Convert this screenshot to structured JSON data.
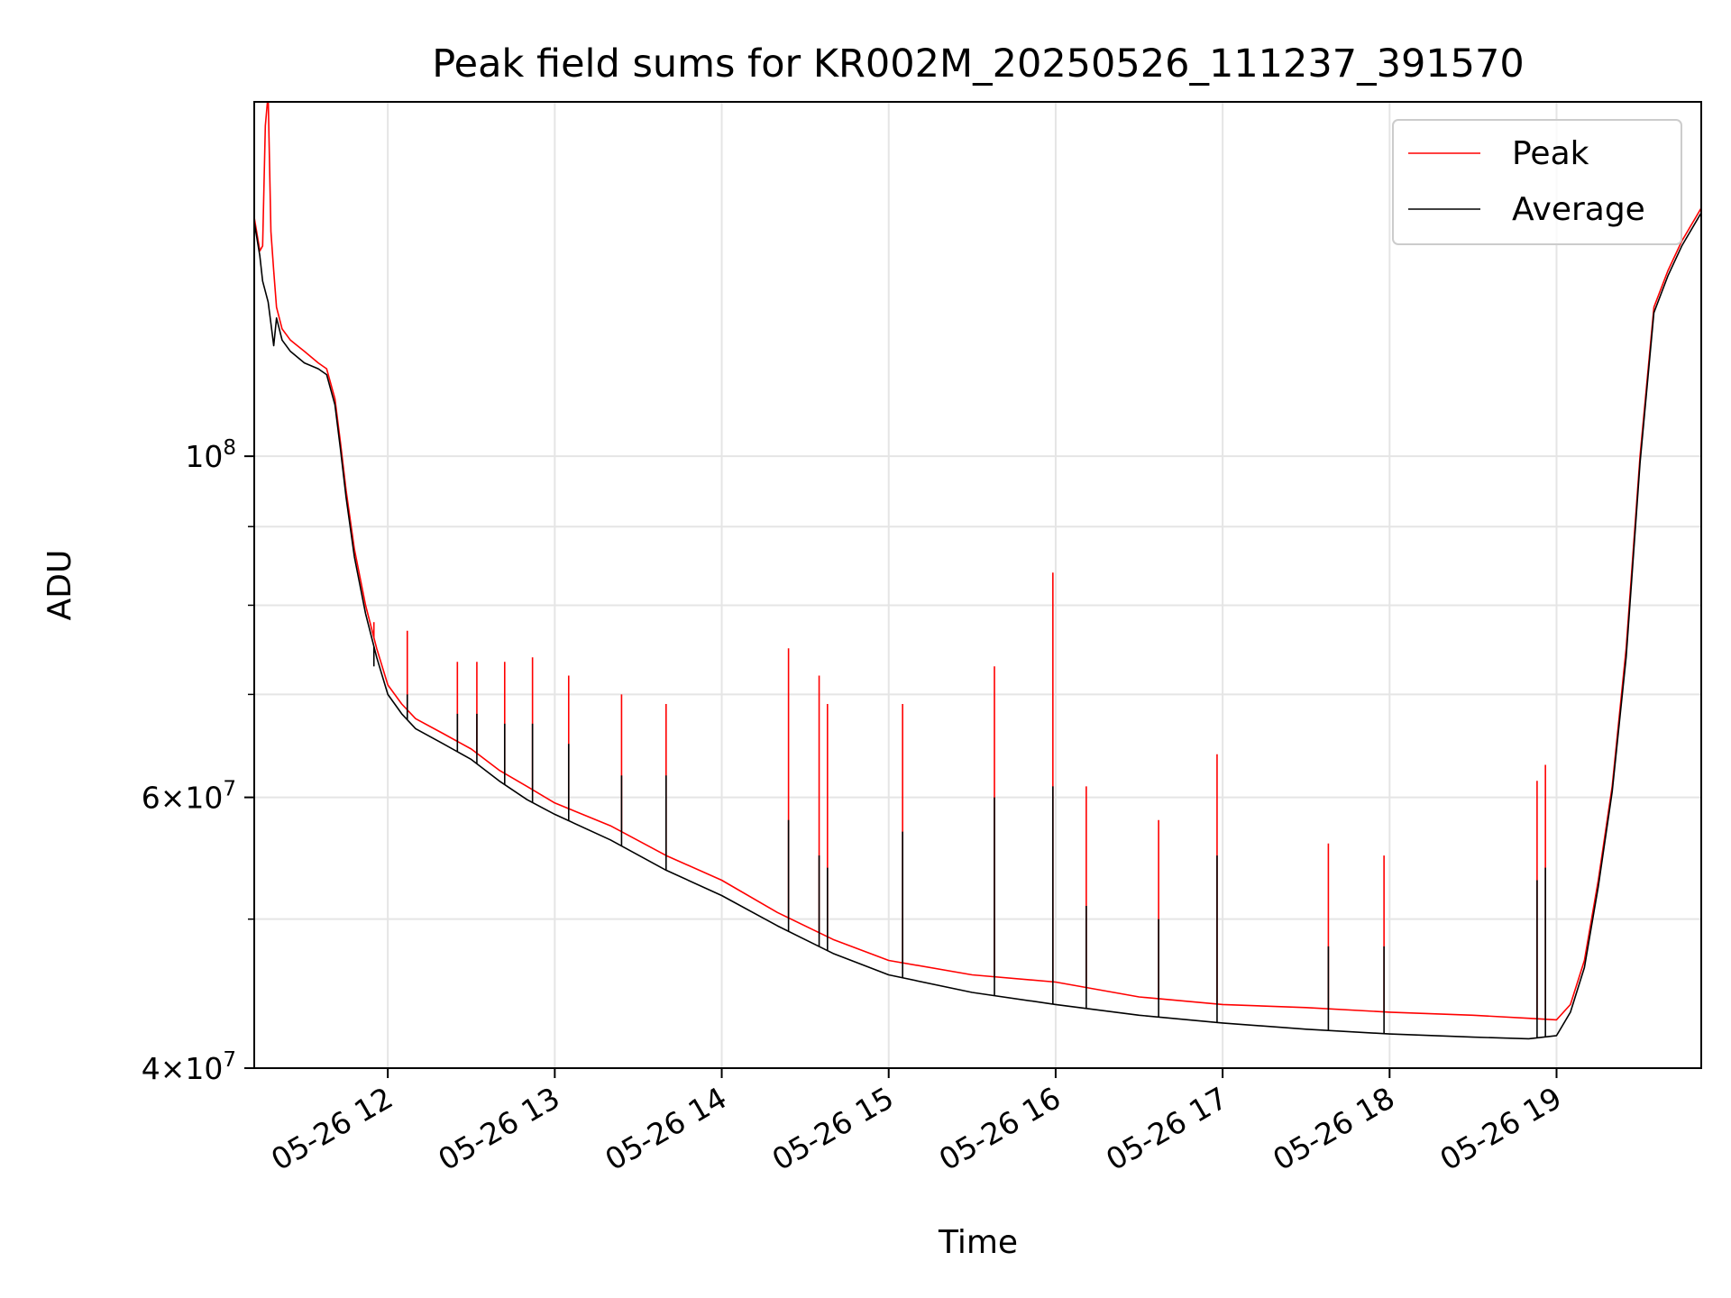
{
  "chart_data": {
    "type": "line",
    "title": "Peak field sums for KR002M_20250526_111237_391570",
    "xlabel": "Time",
    "ylabel": "ADU",
    "yscale": "log",
    "xlim": [
      "2025-05-26T11:12",
      "2025-05-26T19:52"
    ],
    "ylim": [
      40000000,
      170000000
    ],
    "grid": true,
    "legend_position": "top-right",
    "x_ticks": [
      {
        "value": "2025-05-26T12:00",
        "label": "05-26 12"
      },
      {
        "value": "2025-05-26T13:00",
        "label": "05-26 13"
      },
      {
        "value": "2025-05-26T14:00",
        "label": "05-26 14"
      },
      {
        "value": "2025-05-26T15:00",
        "label": "05-26 15"
      },
      {
        "value": "2025-05-26T16:00",
        "label": "05-26 16"
      },
      {
        "value": "2025-05-26T17:00",
        "label": "05-26 17"
      },
      {
        "value": "2025-05-26T18:00",
        "label": "05-26 18"
      },
      {
        "value": "2025-05-26T19:00",
        "label": "05-26 19"
      }
    ],
    "y_ticks": [
      {
        "value": 40000000,
        "base": "4",
        "exp": "7"
      },
      {
        "value": 60000000,
        "base": "6",
        "exp": "7"
      },
      {
        "value": 100000000,
        "base": "",
        "exp": "8"
      }
    ],
    "y_minor_ticks": [
      50000000,
      70000000,
      80000000,
      90000000
    ],
    "series": [
      {
        "name": "Peak",
        "color": "#ff0000",
        "x": [
          "2025-05-26T11:12",
          "2025-05-26T11:14",
          "2025-05-26T11:15",
          "2025-05-26T11:16",
          "2025-05-26T11:17",
          "2025-05-26T11:18",
          "2025-05-26T11:19",
          "2025-05-26T11:20",
          "2025-05-26T11:21",
          "2025-05-26T11:22",
          "2025-05-26T11:25",
          "2025-05-26T11:30",
          "2025-05-26T11:35",
          "2025-05-26T11:38",
          "2025-05-26T11:41",
          "2025-05-26T11:43",
          "2025-05-26T11:45",
          "2025-05-26T11:48",
          "2025-05-26T11:52",
          "2025-05-26T11:56",
          "2025-05-26T12:00",
          "2025-05-26T12:05",
          "2025-05-26T12:10",
          "2025-05-26T12:20",
          "2025-05-26T12:30",
          "2025-05-26T12:40",
          "2025-05-26T12:50",
          "2025-05-26T13:00",
          "2025-05-26T13:20",
          "2025-05-26T13:40",
          "2025-05-26T14:00",
          "2025-05-26T14:20",
          "2025-05-26T14:40",
          "2025-05-26T15:00",
          "2025-05-26T15:30",
          "2025-05-26T16:00",
          "2025-05-26T16:30",
          "2025-05-26T17:00",
          "2025-05-26T17:30",
          "2025-05-26T18:00",
          "2025-05-26T18:30",
          "2025-05-26T18:50",
          "2025-05-26T19:00",
          "2025-05-26T19:05",
          "2025-05-26T19:10",
          "2025-05-26T19:15",
          "2025-05-26T19:20",
          "2025-05-26T19:25",
          "2025-05-26T19:30",
          "2025-05-26T19:35",
          "2025-05-26T19:40",
          "2025-05-26T19:45",
          "2025-05-26T19:52"
        ],
        "values": [
          143000000,
          136000000,
          137000000,
          164000000,
          172000000,
          140000000,
          132000000,
          125000000,
          123000000,
          121000000,
          119000000,
          117000000,
          115000000,
          114000000,
          109000000,
          102000000,
          95000000,
          87000000,
          80000000,
          75000000,
          71000000,
          69000000,
          67500000,
          66000000,
          64500000,
          62500000,
          61000000,
          59500000,
          57500000,
          55000000,
          53000000,
          50500000,
          48500000,
          47000000,
          46000000,
          45500000,
          44500000,
          44000000,
          43800000,
          43500000,
          43300000,
          43100000,
          43000000,
          44000000,
          47000000,
          53000000,
          61000000,
          75000000,
          100000000,
          125000000,
          132000000,
          138000000,
          145000000
        ]
      },
      {
        "name": "Average",
        "color": "#000000",
        "x": [
          "2025-05-26T11:12",
          "2025-05-26T11:14",
          "2025-05-26T11:15",
          "2025-05-26T11:16",
          "2025-05-26T11:17",
          "2025-05-26T11:18",
          "2025-05-26T11:19",
          "2025-05-26T11:20",
          "2025-05-26T11:21",
          "2025-05-26T11:22",
          "2025-05-26T11:25",
          "2025-05-26T11:30",
          "2025-05-26T11:35",
          "2025-05-26T11:38",
          "2025-05-26T11:41",
          "2025-05-26T11:43",
          "2025-05-26T11:45",
          "2025-05-26T11:48",
          "2025-05-26T11:52",
          "2025-05-26T11:56",
          "2025-05-26T12:00",
          "2025-05-26T12:05",
          "2025-05-26T12:10",
          "2025-05-26T12:20",
          "2025-05-26T12:30",
          "2025-05-26T12:40",
          "2025-05-26T12:50",
          "2025-05-26T13:00",
          "2025-05-26T13:20",
          "2025-05-26T13:40",
          "2025-05-26T14:00",
          "2025-05-26T14:20",
          "2025-05-26T14:40",
          "2025-05-26T15:00",
          "2025-05-26T15:30",
          "2025-05-26T16:00",
          "2025-05-26T16:30",
          "2025-05-26T17:00",
          "2025-05-26T17:30",
          "2025-05-26T18:00",
          "2025-05-26T18:30",
          "2025-05-26T18:50",
          "2025-05-26T19:00",
          "2025-05-26T19:05",
          "2025-05-26T19:10",
          "2025-05-26T19:15",
          "2025-05-26T19:20",
          "2025-05-26T19:25",
          "2025-05-26T19:30",
          "2025-05-26T19:35",
          "2025-05-26T19:40",
          "2025-05-26T19:45",
          "2025-05-26T19:52"
        ],
        "values": [
          142000000,
          135000000,
          130000000,
          128000000,
          126000000,
          122000000,
          118000000,
          123000000,
          121000000,
          119000000,
          117000000,
          115000000,
          114000000,
          113000000,
          108000000,
          101000000,
          94000000,
          86000000,
          79000000,
          74000000,
          70000000,
          68000000,
          66500000,
          65000000,
          63500000,
          61500000,
          59800000,
          58500000,
          56300000,
          53800000,
          51800000,
          49500000,
          47500000,
          46000000,
          44800000,
          44000000,
          43300000,
          42800000,
          42400000,
          42100000,
          41900000,
          41800000,
          42000000,
          43500000,
          46500000,
          52500000,
          60500000,
          74000000,
          99000000,
          124000000,
          131000000,
          137000000,
          144000000
        ]
      }
    ],
    "spikes": [
      {
        "x": "2025-05-26T11:55",
        "peak": 78000000,
        "avg": 73000000
      },
      {
        "x": "2025-05-26T12:07",
        "peak": 77000000,
        "avg": 70000000
      },
      {
        "x": "2025-05-26T12:25",
        "peak": 73500000,
        "avg": 68000000
      },
      {
        "x": "2025-05-26T12:32",
        "peak": 73500000,
        "avg": 68000000
      },
      {
        "x": "2025-05-26T12:42",
        "peak": 73500000,
        "avg": 67000000
      },
      {
        "x": "2025-05-26T12:52",
        "peak": 74000000,
        "avg": 67000000
      },
      {
        "x": "2025-05-26T13:05",
        "peak": 72000000,
        "avg": 65000000
      },
      {
        "x": "2025-05-26T13:24",
        "peak": 70000000,
        "avg": 62000000
      },
      {
        "x": "2025-05-26T13:40",
        "peak": 69000000,
        "avg": 62000000
      },
      {
        "x": "2025-05-26T14:24",
        "peak": 75000000,
        "avg": 58000000
      },
      {
        "x": "2025-05-26T14:35",
        "peak": 72000000,
        "avg": 55000000
      },
      {
        "x": "2025-05-26T14:38",
        "peak": 69000000,
        "avg": 54000000
      },
      {
        "x": "2025-05-26T15:05",
        "peak": 69000000,
        "avg": 57000000
      },
      {
        "x": "2025-05-26T15:38",
        "peak": 73000000,
        "avg": 60000000
      },
      {
        "x": "2025-05-26T15:59",
        "peak": 84000000,
        "avg": 61000000
      },
      {
        "x": "2025-05-26T16:11",
        "peak": 61000000,
        "avg": 51000000
      },
      {
        "x": "2025-05-26T16:37",
        "peak": 58000000,
        "avg": 50000000
      },
      {
        "x": "2025-05-26T16:58",
        "peak": 64000000,
        "avg": 55000000
      },
      {
        "x": "2025-05-26T17:38",
        "peak": 56000000,
        "avg": 48000000
      },
      {
        "x": "2025-05-26T17:58",
        "peak": 55000000,
        "avg": 48000000
      },
      {
        "x": "2025-05-26T18:53",
        "peak": 61500000,
        "avg": 53000000
      },
      {
        "x": "2025-05-26T18:56",
        "peak": 63000000,
        "avg": 54000000
      }
    ]
  }
}
